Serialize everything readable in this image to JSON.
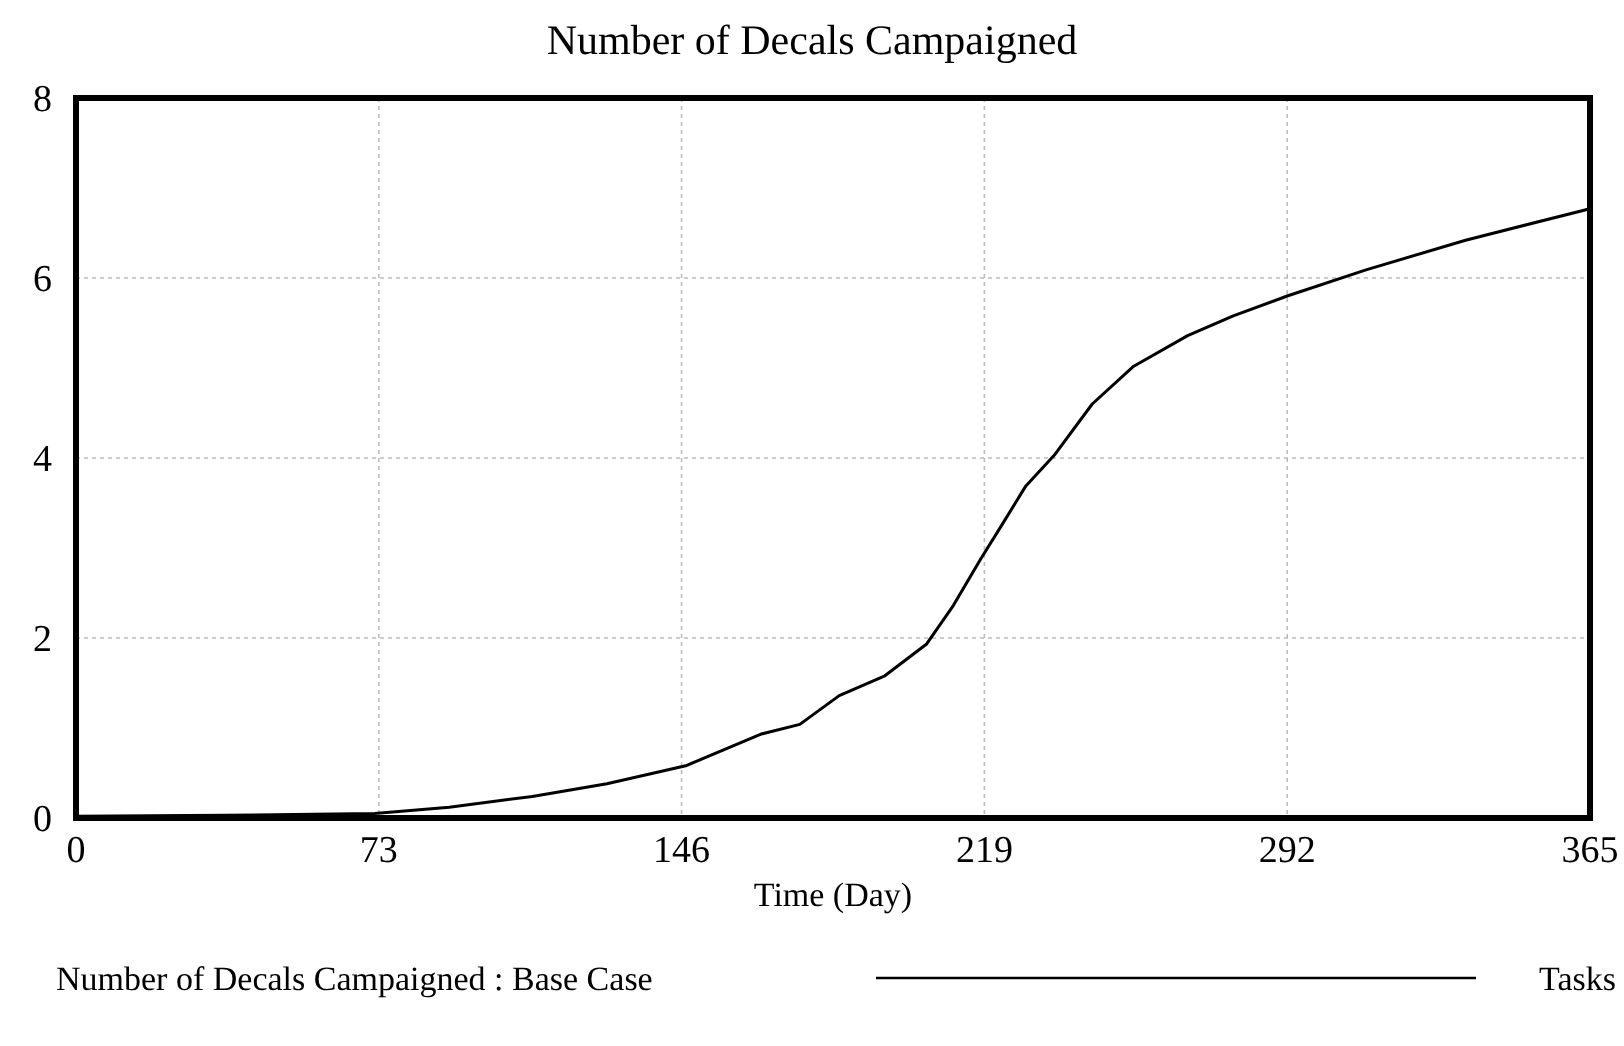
{
  "chart_data": {
    "type": "line",
    "title": "Number of Decals Campaigned",
    "xlabel": "Time (Day)",
    "xlim": [
      0,
      365
    ],
    "xticks": [
      0,
      73,
      146,
      219,
      292,
      365
    ],
    "ylim": [
      0,
      8
    ],
    "yticks": [
      0,
      2,
      4,
      6,
      8
    ],
    "grid": true,
    "legend": "bottom",
    "annotations": [
      "Tasks"
    ],
    "series": [
      {
        "name": "Number of Decals Campaigned : Base Case",
        "color": "#000000",
        "x": [
          0,
          36,
          72,
          90,
          110,
          128,
          147,
          165,
          174.5,
          184,
          195,
          205,
          211.5,
          218,
          223,
          229,
          236,
          245,
          255,
          268,
          279,
          292,
          311,
          335,
          365
        ],
        "values": [
          0.02,
          0.03,
          0.05,
          0.12,
          0.24,
          0.38,
          0.58,
          0.93,
          1.04,
          1.36,
          1.58,
          1.93,
          2.36,
          2.87,
          3.24,
          3.69,
          4.04,
          4.6,
          5.02,
          5.36,
          5.58,
          5.8,
          6.09,
          6.42,
          6.77
        ]
      }
    ]
  }
}
